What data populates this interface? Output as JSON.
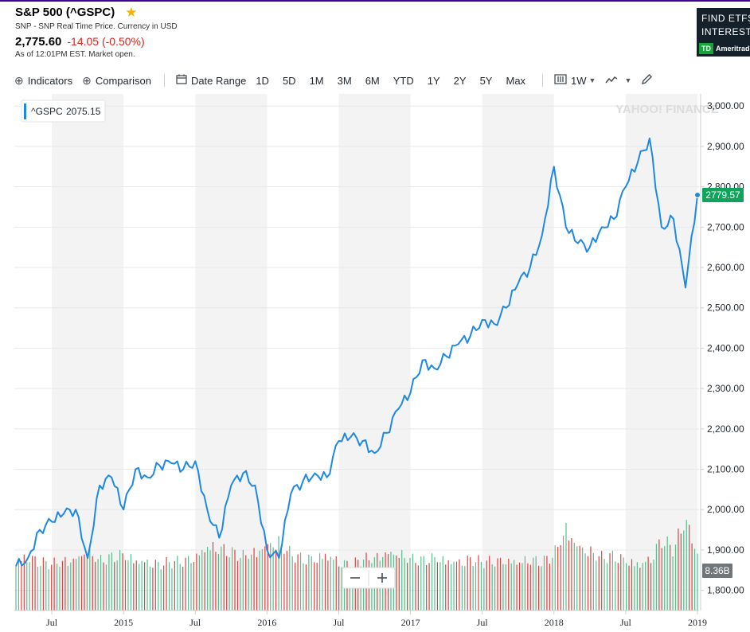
{
  "header": {
    "title": "S&P 500 (^GSPC)",
    "subtitle": "SNP - SNP Real Time Price. Currency in USD",
    "price": "2,775.60",
    "change": "-14.05 (-0.50%)",
    "as_of": "As of 12:01PM EST. Market open."
  },
  "ad": {
    "line1": "FIND ETFS",
    "line2": "INTEREST",
    "logo": "TD",
    "brand": "Ameritrade"
  },
  "toolbar": {
    "indicators": "Indicators",
    "comparison": "Comparison",
    "date_range": "Date Range",
    "ranges": [
      "1D",
      "5D",
      "1M",
      "3M",
      "6M",
      "YTD",
      "1Y",
      "2Y",
      "5Y",
      "Max"
    ],
    "interval": "1W"
  },
  "icons": {
    "plus": "plus-circle-icon",
    "calendar": "calendar-icon",
    "interval": "candle-chart-icon",
    "chart_type": "line-chart-icon",
    "draw": "pencil-icon",
    "zoom_out": "minus-icon",
    "zoom_in": "plus-icon"
  },
  "colors": {
    "line": "#1e88e5",
    "band": "#f3f3f3",
    "volume_up": "#3eb37a",
    "volume_down": "#e0201b",
    "last_price_badge": "#0fa35b",
    "change": "#e0201b",
    "volume_badge": "#70757a"
  },
  "chart_data": {
    "type": "line",
    "series": [
      {
        "name": "^GSPC",
        "x": [
          "2014-04",
          "2014-05",
          "2014-06",
          "2014-07",
          "2014-08",
          "2014-09",
          "2014-10",
          "2014-11",
          "2014-12",
          "2015-01",
          "2015-02",
          "2015-03",
          "2015-04",
          "2015-05",
          "2015-06",
          "2015-07",
          "2015-08",
          "2015-09",
          "2015-10",
          "2015-11",
          "2015-12",
          "2016-01",
          "2016-02",
          "2016-03",
          "2016-04",
          "2016-05",
          "2016-06",
          "2016-07",
          "2016-08",
          "2016-09",
          "2016-10",
          "2016-11",
          "2016-12",
          "2017-01",
          "2017-02",
          "2017-03",
          "2017-04",
          "2017-05",
          "2017-06",
          "2017-07",
          "2017-08",
          "2017-09",
          "2017-10",
          "2017-11",
          "2017-12",
          "2018-01",
          "2018-02",
          "2018-03",
          "2018-04",
          "2018-05",
          "2018-06",
          "2018-07",
          "2018-08",
          "2018-09",
          "2018-10",
          "2018-11",
          "2018-12",
          "2019-01"
        ],
        "values": [
          1860,
          1880,
          1950,
          1970,
          1990,
          2000,
          1880,
          2060,
          2080,
          2000,
          2100,
          2080,
          2110,
          2115,
          2100,
          2120,
          2000,
          1930,
          2060,
          2090,
          2060,
          1900,
          1880,
          2040,
          2070,
          2090,
          2080,
          2170,
          2180,
          2170,
          2140,
          2190,
          2250,
          2290,
          2370,
          2350,
          2380,
          2410,
          2430,
          2470,
          2460,
          2500,
          2560,
          2600,
          2680,
          2850,
          2700,
          2660,
          2650,
          2700,
          2720,
          2800,
          2860,
          2920,
          2700,
          2720,
          2550,
          2779.57
        ]
      }
    ],
    "volume": {
      "name": "Volume",
      "last": "8.36B",
      "values": [
        3.2,
        3.4,
        3.0,
        2.9,
        3.1,
        3.3,
        3.8,
        3.1,
        3.3,
        3.5,
        3.2,
        3.1,
        2.9,
        3.0,
        3.1,
        3.4,
        4.1,
        3.9,
        3.6,
        3.4,
        3.7,
        4.2,
        4.3,
        3.5,
        3.2,
        3.3,
        3.6,
        3.1,
        2.8,
        3.2,
        3.3,
        3.7,
        3.6,
        3.2,
        3.1,
        3.3,
        3.2,
        3.1,
        3.2,
        3.0,
        3.1,
        3.2,
        3.1,
        3.2,
        3.0,
        3.5,
        5.2,
        4.1,
        3.7,
        3.3,
        3.4,
        3.2,
        3.0,
        3.2,
        4.4,
        3.8,
        5.8,
        3.6
      ]
    },
    "x_ticks": [
      "Jul",
      "2015",
      "Jul",
      "2016",
      "Jul",
      "2017",
      "Jul",
      "2018",
      "Jul",
      "2019"
    ],
    "y_ticks": [
      "3,000.00",
      "2,900.00",
      "2,800.00",
      "2,700.00",
      "2,600.00",
      "2,500.00",
      "2,400.00",
      "2,300.00",
      "2,200.00",
      "2,100.00",
      "2,000.00",
      "1,900.00",
      "1,800.00"
    ],
    "ylim": [
      1750,
      3030
    ],
    "legend": {
      "label": "^GSPC",
      "value": "2075.15"
    },
    "last_price_label": "2779.57",
    "watermark": "YAHOO! FINANCE",
    "grid": true
  }
}
